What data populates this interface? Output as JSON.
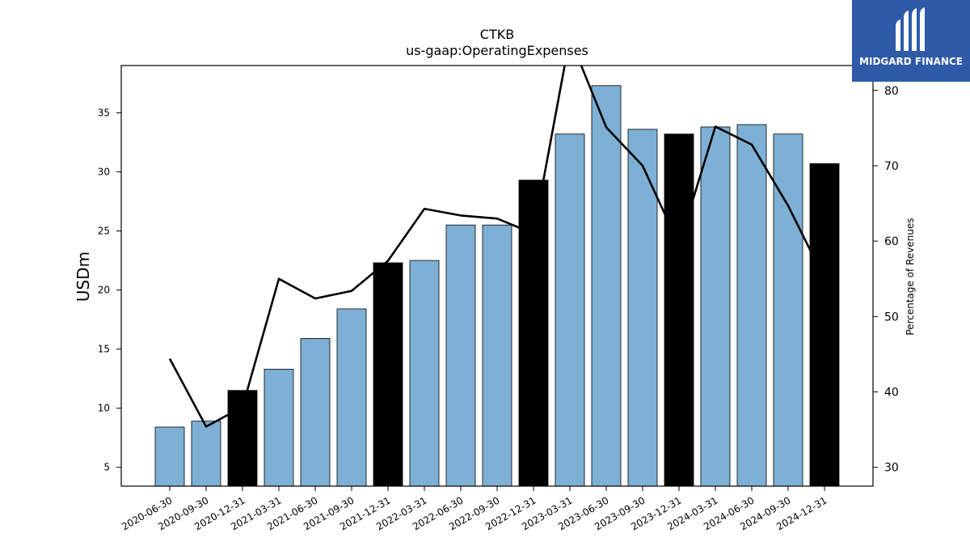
{
  "brand": {
    "name": "MIDGARD FINANCE",
    "logo_icon": "midgard-logo-icon",
    "color": "#2e5aa8"
  },
  "chart_data": {
    "type": "bar",
    "title": "CTKB",
    "subtitle": "us-gaap:OperatingExpenses",
    "ylabel": "USDm",
    "y2label": "Percentage of Revenues",
    "ylim": [
      3.4,
      39.0
    ],
    "y2lim": [
      27.5,
      83.3
    ],
    "yticks": [
      "5",
      "10",
      "15",
      "20",
      "25",
      "30",
      "35"
    ],
    "y2ticks": [
      "30",
      "40",
      "50",
      "60",
      "70",
      "80"
    ],
    "categories": [
      "2020-06-30",
      "2020-09-30",
      "2020-12-31",
      "2021-03-31",
      "2021-06-30",
      "2021-09-30",
      "2021-12-31",
      "2022-03-31",
      "2022-06-30",
      "2022-09-30",
      "2022-12-31",
      "2023-03-31",
      "2023-06-30",
      "2023-09-30",
      "2023-12-31",
      "2024-03-31",
      "2024-06-30",
      "2024-09-30",
      "2024-12-31"
    ],
    "series": [
      {
        "type": "bar",
        "values": [
          8.4,
          8.9,
          11.5,
          13.3,
          15.9,
          18.4,
          22.3,
          22.5,
          25.5,
          25.5,
          29.3,
          33.2,
          37.3,
          33.6,
          33.2,
          33.8,
          34.0,
          33.2,
          30.7
        ],
        "colors": [
          "#7eb0d5",
          "#7eb0d5",
          "#000000",
          "#7eb0d5",
          "#7eb0d5",
          "#7eb0d5",
          "#000000",
          "#7eb0d5",
          "#7eb0d5",
          "#7eb0d5",
          "#000000",
          "#7eb0d5",
          "#7eb0d5",
          "#7eb0d5",
          "#000000",
          "#7eb0d5",
          "#7eb0d5",
          "#7eb0d5",
          "#000000"
        ]
      },
      {
        "type": "line",
        "axis": "right",
        "color": "#000000",
        "values": [
          44.4,
          35.4,
          38.0,
          55.0,
          52.4,
          53.4,
          57.4,
          64.3,
          63.4,
          63.0,
          61.0,
          87.0,
          75.1,
          70.0,
          59.5,
          75.2,
          72.8,
          64.7,
          55.0
        ]
      }
    ],
    "grid": false,
    "legend": "none"
  }
}
